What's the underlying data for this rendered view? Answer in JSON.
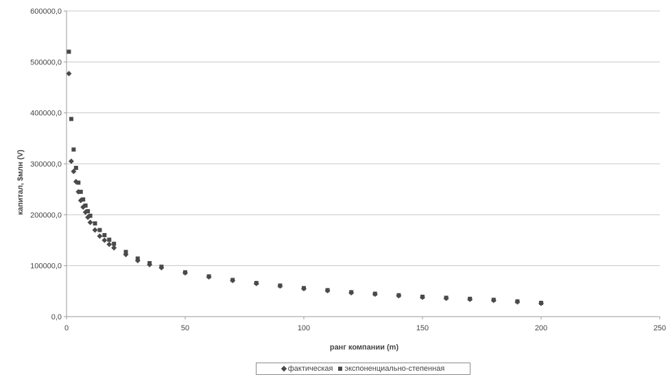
{
  "chart_data": {
    "type": "scatter",
    "xlabel": "ранг компании (m)",
    "ylabel": "капитал, $млн (V)",
    "xlim": [
      0,
      250
    ],
    "ylim": [
      0,
      600000
    ],
    "x_ticks": [
      "0",
      "50",
      "100",
      "150",
      "200",
      "250"
    ],
    "y_ticks": [
      "0,0",
      "100000,0",
      "200000,0",
      "300000,0",
      "400000,0",
      "500000,0",
      "600000,0"
    ],
    "grid": "horizontal",
    "legend_position": "bottom",
    "colors": {
      "marker": "#4a4a4a",
      "grid": "#c8c8c8",
      "axis": "#9a9a9a"
    },
    "series": [
      {
        "name": "фактическая",
        "marker": "diamond",
        "x": [
          1,
          2,
          3,
          4,
          5,
          6,
          7,
          8,
          9,
          10,
          12,
          14,
          16,
          18,
          20,
          25,
          30,
          35,
          40,
          50,
          60,
          70,
          80,
          90,
          100,
          110,
          120,
          130,
          140,
          150,
          160,
          170,
          180,
          190,
          200
        ],
        "y": [
          477000,
          305000,
          285000,
          265000,
          245000,
          228000,
          215000,
          205000,
          195000,
          185000,
          170000,
          158000,
          150000,
          142000,
          135000,
          122000,
          110000,
          102000,
          96000,
          86000,
          78000,
          71000,
          65000,
          60000,
          55000,
          51000,
          47000,
          44000,
          41000,
          38000,
          36000,
          34000,
          32000,
          29000,
          26000
        ]
      },
      {
        "name": "экспоненциально-степенная",
        "marker": "square",
        "x": [
          1,
          2,
          3,
          4,
          5,
          6,
          7,
          8,
          9,
          10,
          12,
          14,
          16,
          18,
          20,
          25,
          30,
          35,
          40,
          50,
          60,
          70,
          80,
          90,
          100,
          110,
          120,
          130,
          140,
          150,
          160,
          170,
          180,
          190,
          200
        ],
        "y": [
          520000,
          388000,
          328000,
          292000,
          263000,
          245000,
          230000,
          218000,
          207000,
          198000,
          183000,
          170000,
          160000,
          151000,
          143000,
          127000,
          114000,
          105000,
          98000,
          87000,
          79000,
          72000,
          66000,
          61000,
          56000,
          52000,
          48000,
          45000,
          42000,
          39000,
          37000,
          35000,
          33000,
          30000,
          27000
        ]
      }
    ]
  }
}
